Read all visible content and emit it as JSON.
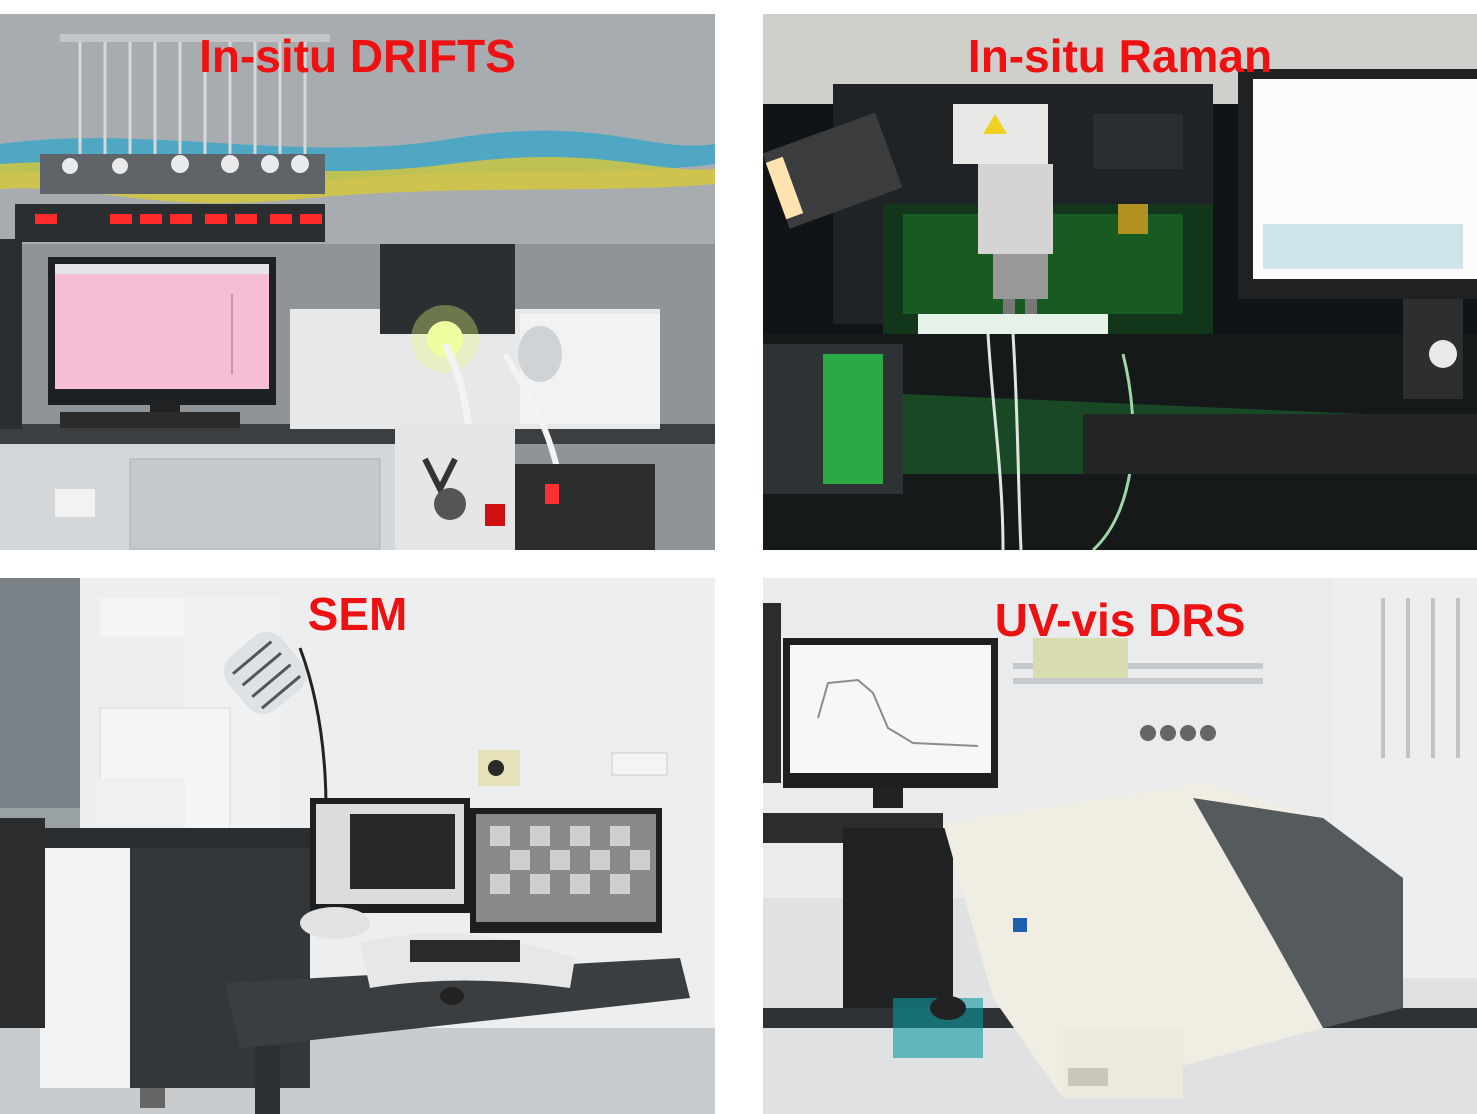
{
  "caption_color": "#ee1111",
  "panels": [
    {
      "label": "In-situ DRIFTS"
    },
    {
      "label": "In-situ Raman"
    },
    {
      "label": "SEM"
    },
    {
      "label": "UV-vis DRS"
    }
  ]
}
